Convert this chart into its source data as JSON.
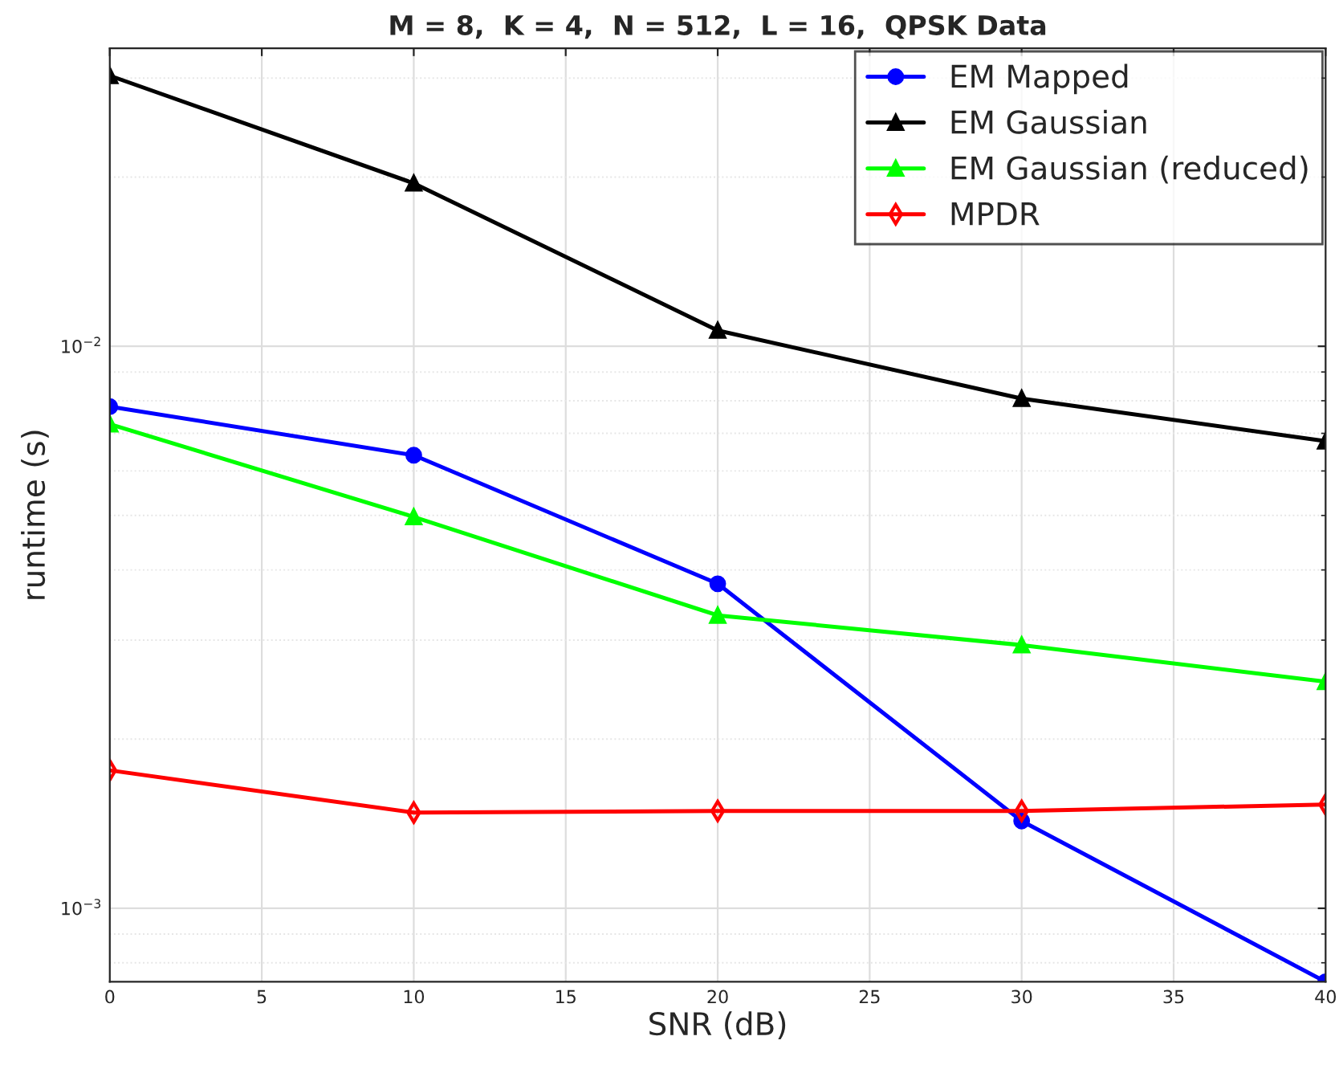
{
  "chart_data": {
    "type": "line",
    "title": "M = 8,  K = 4,  N = 512,  L = 16,  QPSK Data",
    "xlabel": "SNR (dB)",
    "ylabel": "runtime (s)",
    "x": [
      0,
      10,
      20,
      30,
      40
    ],
    "series": [
      {
        "name": "EM Mapped",
        "color": "#0000ff",
        "marker": "circle",
        "values": [
          0.00781,
          0.0064,
          0.00378,
          0.00143,
          0.00074
        ]
      },
      {
        "name": "EM Gaussian",
        "color": "#000000",
        "marker": "triangle",
        "values": [
          0.0303,
          0.0195,
          0.01067,
          0.00807,
          0.00678
        ]
      },
      {
        "name": "EM Gaussian (reduced)",
        "color": "#00ff00",
        "marker": "triangle",
        "values": [
          0.00727,
          0.00497,
          0.00332,
          0.00294,
          0.00253
        ]
      },
      {
        "name": "MPDR",
        "color": "#ff0000",
        "marker": "diamond",
        "values": [
          0.00176,
          0.00148,
          0.00149,
          0.00149,
          0.00153
        ]
      }
    ],
    "log": "y",
    "xlim": [
      0,
      40
    ],
    "xticks": [
      0,
      5,
      10,
      15,
      20,
      25,
      30,
      35,
      40
    ],
    "ylim": [
      0.00074,
      0.0339
    ],
    "yticks": [
      {
        "value": 0.001,
        "label": "10$^{−3}$"
      },
      {
        "value": 0.01,
        "label": "10$^{−2}$"
      }
    ],
    "grid": true,
    "legend": "top right",
    "line_style": "solid"
  }
}
